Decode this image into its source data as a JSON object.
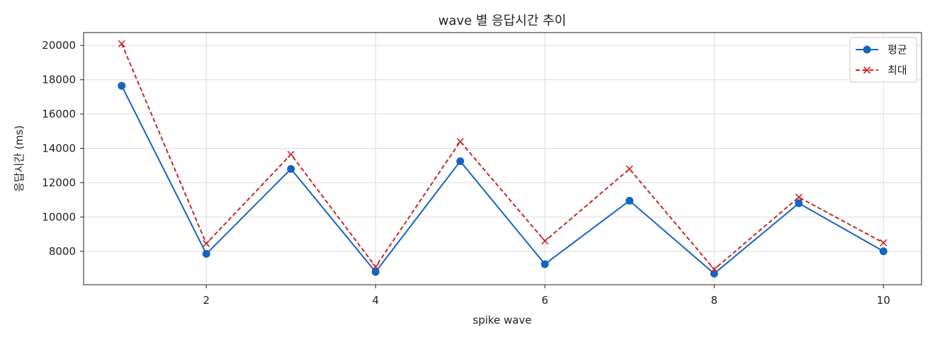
{
  "chart_data": {
    "type": "line",
    "title": "wave 별 응답시간 추이",
    "xlabel": "spike wave",
    "ylabel": "응답시간 (ms)",
    "x": [
      1,
      2,
      3,
      4,
      5,
      6,
      7,
      8,
      9,
      10
    ],
    "xlim": [
      0.55,
      10.45
    ],
    "ylim": [
      6050,
      20750
    ],
    "xticks": [
      2,
      4,
      6,
      8,
      10
    ],
    "yticks": [
      8000,
      10000,
      12000,
      14000,
      16000,
      18000,
      20000
    ],
    "grid": true,
    "legend_position": "top-right",
    "series": [
      {
        "name": "평균",
        "color": "#1565c0",
        "line_style": "solid",
        "marker": "circle",
        "values": [
          17650,
          7850,
          12800,
          6800,
          13250,
          7250,
          10950,
          6700,
          10800,
          8000
        ]
      },
      {
        "name": "최대",
        "color": "#c62828",
        "line_style": "dashed",
        "marker": "x",
        "values": [
          20100,
          8450,
          13650,
          7100,
          14400,
          8600,
          12800,
          6950,
          11150,
          8500
        ]
      }
    ]
  }
}
